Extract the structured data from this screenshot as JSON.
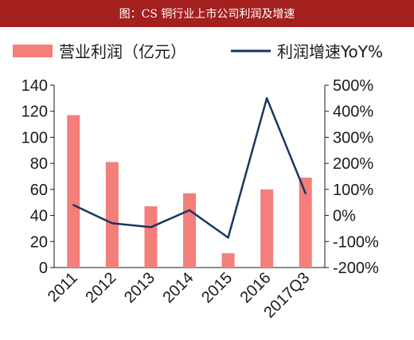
{
  "title": "图：CS 铜行业上市公司利润及增速",
  "chart_data": {
    "type": "bar",
    "categories": [
      "2011",
      "2012",
      "2013",
      "2014",
      "2015",
      "2016",
      "2017Q3"
    ],
    "series": [
      {
        "name": "营业利润（亿元）",
        "type": "bar",
        "axis": "left",
        "values": [
          117,
          81,
          47,
          57,
          11,
          60,
          69
        ],
        "color": "#f47e7a"
      },
      {
        "name": "利润增速YoY%",
        "type": "line",
        "axis": "right",
        "values": [
          40,
          -30,
          -45,
          20,
          -85,
          450,
          85
        ],
        "color": "#17375e"
      }
    ],
    "y_left": {
      "min": 0,
      "max": 140,
      "ticks": [
        "0",
        "20",
        "40",
        "60",
        "80",
        "100",
        "120",
        "140"
      ]
    },
    "y_right": {
      "min": -200,
      "max": 500,
      "ticks": [
        "-200%",
        "-100%",
        "0%",
        "100%",
        "200%",
        "300%",
        "400%",
        "500%"
      ]
    },
    "grid": false,
    "legend": "top"
  }
}
